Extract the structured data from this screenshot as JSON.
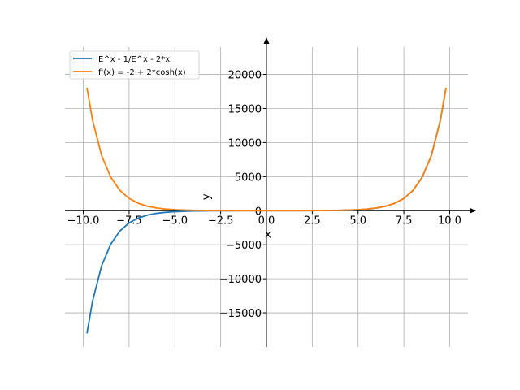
{
  "chart_data": {
    "type": "line",
    "xlabel": "x",
    "ylabel": "y",
    "xlim": [
      -11.0,
      11.0
    ],
    "ylim": [
      -20000,
      24000
    ],
    "grid": true,
    "legend_placement": "top-left",
    "x_ticks": [
      -10.0,
      -7.5,
      -5.0,
      -2.5,
      0.0,
      2.5,
      5.0,
      7.5,
      10.0
    ],
    "x_tick_labels": [
      "−10.0",
      "−7.5",
      "−5.0",
      "−2.5",
      "0.0",
      "2.5",
      "5.0",
      "7.5",
      "10.0"
    ],
    "y_ticks": [
      -15000,
      -10000,
      -5000,
      0,
      5000,
      10000,
      15000,
      20000
    ],
    "y_tick_labels": [
      "−15000",
      "−10000",
      "−5000",
      "0",
      "5000",
      "10000",
      "15000",
      "20000"
    ],
    "series": [
      {
        "name": "E^x - 1/E^x - 2*x",
        "color": "#1f77b4",
        "x": [
          -9.8,
          -9.5,
          -9.0,
          -8.5,
          -8.0,
          -7.5,
          -7.0,
          -6.5,
          -6.0,
          -5.5,
          -5.0,
          -4.0,
          -3.0,
          -2.0,
          -1.0,
          0.0,
          1.0,
          2.0,
          3.0,
          4.0,
          5.0,
          5.5,
          6.0,
          6.5,
          7.0,
          7.5,
          8.0,
          8.5,
          9.0,
          9.5,
          9.8
        ],
        "y": [
          -18013,
          -13340,
          -8085,
          -4897,
          -2965,
          -1793,
          -1083,
          -652,
          -391,
          -234,
          -138,
          -46,
          -14,
          -3,
          -0.35,
          0,
          0.35,
          3,
          14,
          46,
          138,
          234,
          391,
          652,
          1083,
          1793,
          2965,
          4897,
          8085,
          13340,
          18013
        ]
      },
      {
        "name": "f'(x) = -2 + 2*cosh(x)",
        "color": "#ff7f0e",
        "x": [
          -9.8,
          -9.5,
          -9.0,
          -8.5,
          -8.0,
          -7.5,
          -7.0,
          -6.5,
          -6.0,
          -5.5,
          -5.0,
          -4.0,
          -3.0,
          -2.0,
          -1.0,
          0.0,
          1.0,
          2.0,
          3.0,
          4.0,
          5.0,
          5.5,
          6.0,
          6.5,
          7.0,
          7.5,
          8.0,
          8.5,
          9.0,
          9.5,
          9.8
        ],
        "y": [
          18034,
          13358,
          8101,
          4913,
          2979,
          1806,
          1095,
          663,
          401,
          243,
          146,
          53,
          18,
          5.5,
          1.09,
          0,
          1.09,
          5.5,
          18,
          53,
          146,
          243,
          401,
          663,
          1095,
          1806,
          2979,
          4913,
          8101,
          13358,
          18034
        ]
      }
    ]
  }
}
